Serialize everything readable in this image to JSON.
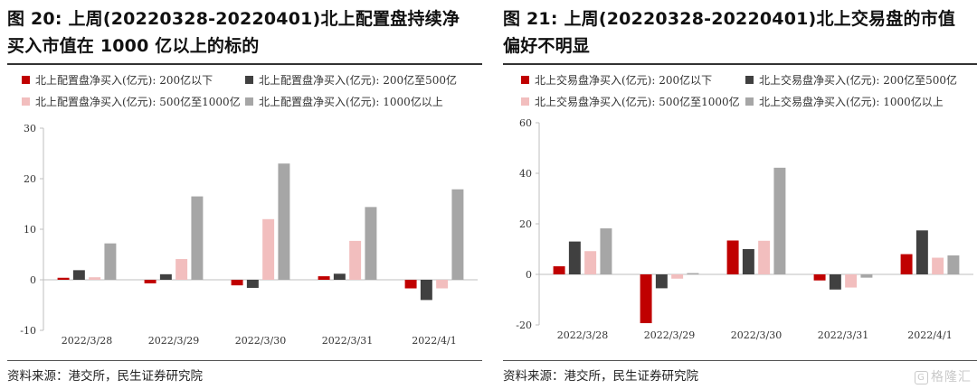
{
  "panels": [
    {
      "title_line1": "图 20: 上周(20220328-20220401)北上配置盘持续净",
      "title_line2": "买入市值在 1000 亿以上的标的",
      "source": "资料来源：港交所，民生证券研究院",
      "chart_data": {
        "type": "bar",
        "categories": [
          "2022/3/28",
          "2022/3/29",
          "2022/3/30",
          "2022/3/31",
          "2022/4/1"
        ],
        "ylim": [
          -10,
          30
        ],
        "yticks": [
          -10,
          0,
          10,
          20,
          30
        ],
        "xlabel": "",
        "ylabel": "",
        "legend_position": "top",
        "series": [
          {
            "name": "北上配置盘净买入(亿元): 200亿以下",
            "color": "#c00000",
            "values": [
              0.4,
              -0.7,
              -1.1,
              0.7,
              -1.7
            ]
          },
          {
            "name": "北上配置盘净买入(亿元): 200亿至500亿",
            "color": "#404040",
            "values": [
              1.9,
              1.1,
              -1.6,
              1.2,
              -4.0
            ]
          },
          {
            "name": "北上配置盘净买入(亿元): 500亿至1000亿",
            "color": "#f2bebe",
            "values": [
              0.5,
              4.1,
              12.0,
              7.7,
              -1.7
            ]
          },
          {
            "name": "北上配置盘净买入(亿元): 1000亿以上",
            "color": "#a6a6a6",
            "values": [
              7.2,
              16.5,
              23.0,
              14.4,
              17.9
            ]
          }
        ]
      }
    },
    {
      "title_line1": "图 21: 上周(20220328-20220401)北上交易盘的市值",
      "title_line2": "偏好不明显",
      "source": "资料来源：港交所，民生证券研究院",
      "chart_data": {
        "type": "bar",
        "categories": [
          "2022/3/28",
          "2022/3/29",
          "2022/3/30",
          "2022/3/31",
          "2022/4/1"
        ],
        "ylim": [
          -20,
          60
        ],
        "yticks": [
          -20,
          0,
          20,
          40,
          60
        ],
        "xlabel": "",
        "ylabel": "",
        "legend_position": "top",
        "series": [
          {
            "name": "北上交易盘净买入(亿元): 200亿以下",
            "color": "#c00000",
            "values": [
              3.2,
              -19.3,
              13.4,
              -2.4,
              8.0
            ]
          },
          {
            "name": "北上交易盘净买入(亿元): 200亿至500亿",
            "color": "#404040",
            "values": [
              13.0,
              -5.5,
              10.0,
              -6.0,
              17.4
            ]
          },
          {
            "name": "北上交易盘净买入(亿元): 500亿至1000亿",
            "color": "#f2bebe",
            "values": [
              9.2,
              -1.7,
              13.3,
              -5.2,
              6.6
            ]
          },
          {
            "name": "北上交易盘净买入(亿元): 1000亿以上",
            "color": "#a6a6a6",
            "values": [
              18.2,
              0.5,
              42.2,
              -1.3,
              7.5
            ]
          }
        ]
      }
    }
  ],
  "watermark": {
    "text": "格隆汇",
    "icon": "G"
  }
}
